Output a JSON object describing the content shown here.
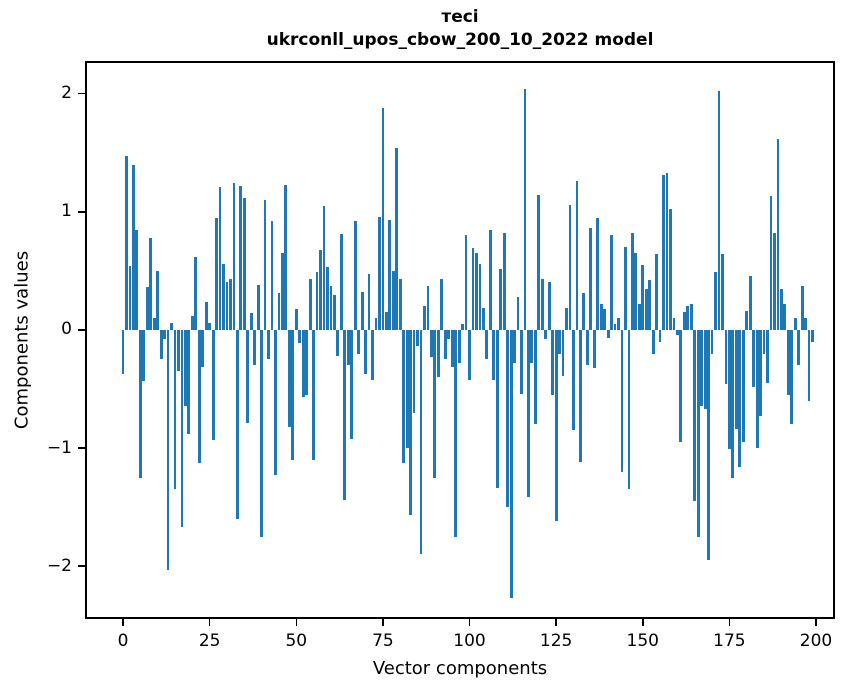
{
  "title": {
    "line1": "тесі",
    "line2": "ukrconll_upos_cbow_200_10_2022 model"
  },
  "chart_data": {
    "type": "bar",
    "title": "тесі\nukrconll_upos_cbow_200_10_2022 model",
    "xlabel": "Vector components",
    "ylabel": "Components values",
    "bar_color": "#1f77b4",
    "n_bars": 200,
    "grid": false,
    "legend": null,
    "xlim": [
      -10.4,
      204.9
    ],
    "ylim": [
      -2.43,
      2.26
    ],
    "x_ticks": [
      0,
      25,
      50,
      75,
      100,
      125,
      150,
      175,
      200
    ],
    "x_tick_labels": [
      "0",
      "25",
      "50",
      "75",
      "100",
      "125",
      "150",
      "175",
      "200"
    ],
    "y_ticks": [
      2,
      1,
      0,
      -1,
      -2
    ],
    "y_tick_labels": [
      "2",
      "1",
      "0",
      "−1",
      "−2"
    ],
    "values": [
      -0.37,
      1.47,
      0.54,
      1.4,
      0.85,
      -1.25,
      -0.43,
      0.36,
      0.78,
      0.1,
      0.5,
      -0.25,
      -0.08,
      -2.03,
      0.06,
      -1.35,
      -0.35,
      -1.67,
      -0.64,
      -0.88,
      0.12,
      0.62,
      -1.13,
      -0.31,
      0.24,
      0.06,
      -0.93,
      0.95,
      1.21,
      0.56,
      0.41,
      0.43,
      1.24,
      -1.6,
      1.22,
      1.12,
      -0.79,
      0.14,
      -0.3,
      0.38,
      -1.75,
      1.1,
      -0.25,
      0.92,
      -1.23,
      0.31,
      0.65,
      1.23,
      -0.82,
      -1.1,
      0.18,
      -0.11,
      -0.57,
      -0.55,
      0.43,
      -1.1,
      0.49,
      0.68,
      1.05,
      0.53,
      0.37,
      0.3,
      -0.22,
      0.81,
      -1.44,
      -0.3,
      -0.92,
      0.92,
      -0.2,
      0.32,
      -0.37,
      0.47,
      -0.42,
      0.1,
      0.96,
      1.88,
      0.15,
      0.93,
      0.5,
      1.54,
      0.43,
      -1.13,
      -1.0,
      -1.57,
      -0.7,
      -0.14,
      -1.9,
      0.2,
      0.37,
      -0.23,
      -1.25,
      -0.4,
      0.43,
      -0.25,
      -0.08,
      -0.31,
      -1.75,
      -0.28,
      0.05,
      0.8,
      -0.42,
      0.69,
      0.65,
      0.56,
      0.19,
      -0.25,
      0.85,
      -0.42,
      -1.34,
      0.52,
      0.82,
      -1.5,
      -2.27,
      -0.28,
      0.28,
      -0.54,
      2.04,
      -1.41,
      -0.28,
      -0.8,
      1.14,
      0.43,
      -0.08,
      0.41,
      -0.55,
      -1.62,
      -0.2,
      -0.39,
      0.19,
      1.06,
      -0.85,
      1.26,
      -1.12,
      0.31,
      -0.3,
      0.86,
      -0.32,
      0.95,
      0.22,
      0.18,
      -0.07,
      0.8,
      0.05,
      0.1,
      -1.2,
      0.7,
      -1.35,
      0.82,
      0.65,
      0.22,
      0.55,
      0.35,
      0.42,
      -0.2,
      0.64,
      -0.1,
      1.31,
      1.33,
      1.02,
      0.1,
      -0.04,
      -0.95,
      0.15,
      0.2,
      0.22,
      -1.45,
      -1.75,
      -0.64,
      -0.67,
      -1.95,
      -0.2,
      0.49,
      2.02,
      0.64,
      -0.46,
      -1.01,
      -1.25,
      -0.84,
      -1.16,
      -0.95,
      0.16,
      0.46,
      -0.48,
      -1.0,
      -0.73,
      -0.2,
      -0.45,
      1.13,
      0.82,
      1.62,
      0.35,
      0.22,
      -0.55,
      -0.8,
      0.1,
      -0.3,
      0.37,
      0.1,
      -0.6,
      -0.1
    ]
  }
}
